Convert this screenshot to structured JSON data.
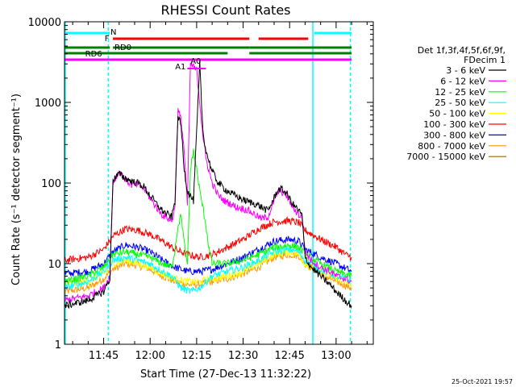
{
  "chart_data": {
    "type": "line",
    "title": "RHESSI Count Rates",
    "xlabel": "Start Time (27-Dec-13 11:32:22)",
    "ylabel": "Count Rate (s⁻¹ detector segment⁻¹)",
    "y_scale": "log",
    "ylim": [
      1,
      10000
    ],
    "xlim": [
      "11:32:22",
      "13:12:00"
    ],
    "y_ticks": [
      "1",
      "10",
      "100",
      "1000",
      "10000"
    ],
    "x_ticks": [
      "11:45",
      "12:00",
      "12:15",
      "12:30",
      "12:45",
      "13:00"
    ],
    "x_tick_minutes": [
      705,
      720,
      735,
      750,
      765,
      780
    ],
    "grid": false,
    "legend_position": "right",
    "legend_header": [
      "Det 1f,3f,4f,5f,6f,9f,",
      "FDecim 1"
    ],
    "series": [
      {
        "name": "3 - 6 keV",
        "color": "#000000",
        "points": [
          [
            692.4,
            3.0
          ],
          [
            700,
            3.5
          ],
          [
            705,
            4.5
          ],
          [
            707,
            6.5
          ],
          [
            708,
            110
          ],
          [
            710,
            130
          ],
          [
            712,
            115
          ],
          [
            714,
            105
          ],
          [
            716,
            100
          ],
          [
            718,
            90
          ],
          [
            720,
            70
          ],
          [
            722,
            55
          ],
          [
            724,
            45
          ],
          [
            726,
            40
          ],
          [
            727,
            38
          ],
          [
            728,
            60
          ],
          [
            729,
            700
          ],
          [
            730,
            500
          ],
          [
            731,
            150
          ],
          [
            732,
            80
          ],
          [
            734,
            60
          ],
          [
            736,
            3000
          ],
          [
            737,
            450
          ],
          [
            738,
            250
          ],
          [
            740,
            140
          ],
          [
            742,
            100
          ],
          [
            744,
            85
          ],
          [
            746,
            75
          ],
          [
            748,
            68
          ],
          [
            750,
            62
          ],
          [
            752,
            58
          ],
          [
            754,
            55
          ],
          [
            756,
            50
          ],
          [
            758,
            45
          ],
          [
            760,
            65
          ],
          [
            761,
            80
          ],
          [
            762,
            85
          ],
          [
            764,
            75
          ],
          [
            766,
            55
          ],
          [
            768,
            45
          ],
          [
            769,
            40
          ],
          [
            770,
            12
          ],
          [
            772,
            9
          ],
          [
            775,
            7
          ],
          [
            778,
            5.5
          ],
          [
            780,
            4.5
          ],
          [
            783,
            3.5
          ],
          [
            785,
            3.0
          ]
        ]
      },
      {
        "name": "6 - 12 keV",
        "color": "#ff00ff",
        "points": [
          [
            692.4,
            3.5
          ],
          [
            700,
            4.0
          ],
          [
            705,
            5.0
          ],
          [
            707,
            7.0
          ],
          [
            708,
            100
          ],
          [
            710,
            140
          ],
          [
            712,
            110
          ],
          [
            714,
            95
          ],
          [
            716,
            95
          ],
          [
            718,
            85
          ],
          [
            720,
            65
          ],
          [
            722,
            50
          ],
          [
            724,
            40
          ],
          [
            726,
            36
          ],
          [
            727,
            33
          ],
          [
            728,
            50
          ],
          [
            729,
            800
          ],
          [
            730,
            600
          ],
          [
            731,
            250
          ],
          [
            732,
            50
          ],
          [
            733,
            3000
          ],
          [
            735,
            2500
          ],
          [
            737,
            400
          ],
          [
            738,
            200
          ],
          [
            740,
            100
          ],
          [
            742,
            70
          ],
          [
            744,
            60
          ],
          [
            746,
            55
          ],
          [
            748,
            50
          ],
          [
            750,
            48
          ],
          [
            752,
            45
          ],
          [
            754,
            40
          ],
          [
            756,
            36
          ],
          [
            758,
            38
          ],
          [
            760,
            60
          ],
          [
            761,
            75
          ],
          [
            762,
            80
          ],
          [
            764,
            70
          ],
          [
            766,
            50
          ],
          [
            768,
            40
          ],
          [
            769,
            38
          ],
          [
            770,
            14
          ],
          [
            772,
            11
          ],
          [
            775,
            9
          ],
          [
            778,
            8
          ],
          [
            780,
            7
          ],
          [
            783,
            6.5
          ],
          [
            785,
            6.0
          ]
        ]
      },
      {
        "name": "12 - 25 keV",
        "color": "#00ff00",
        "points": [
          [
            692.4,
            6.0
          ],
          [
            700,
            7.0
          ],
          [
            705,
            9.0
          ],
          [
            708,
            13
          ],
          [
            712,
            14
          ],
          [
            716,
            13
          ],
          [
            720,
            12
          ],
          [
            724,
            10
          ],
          [
            727,
            9
          ],
          [
            728,
            15
          ],
          [
            729,
            30
          ],
          [
            730,
            40
          ],
          [
            731,
            18
          ],
          [
            732,
            9
          ],
          [
            733,
            150
          ],
          [
            734,
            250
          ],
          [
            735,
            150
          ],
          [
            736,
            80
          ],
          [
            737,
            50
          ],
          [
            738,
            30
          ],
          [
            739,
            15
          ],
          [
            740,
            10
          ],
          [
            745,
            10
          ],
          [
            750,
            11
          ],
          [
            755,
            13
          ],
          [
            760,
            16
          ],
          [
            765,
            17
          ],
          [
            768,
            16
          ],
          [
            770,
            13
          ],
          [
            775,
            10
          ],
          [
            780,
            8
          ],
          [
            785,
            7
          ]
        ]
      },
      {
        "name": "25 - 50 keV",
        "color": "#00ffff",
        "points": [
          [
            692.4,
            5.0
          ],
          [
            700,
            6.0
          ],
          [
            705,
            8.0
          ],
          [
            708,
            11
          ],
          [
            712,
            12
          ],
          [
            716,
            11
          ],
          [
            720,
            10
          ],
          [
            724,
            8
          ],
          [
            727,
            7
          ],
          [
            730,
            5
          ],
          [
            733,
            4.5
          ],
          [
            736,
            5
          ],
          [
            740,
            7
          ],
          [
            745,
            8
          ],
          [
            750,
            9
          ],
          [
            755,
            11
          ],
          [
            760,
            14
          ],
          [
            765,
            15
          ],
          [
            768,
            14
          ],
          [
            770,
            11
          ],
          [
            775,
            8.5
          ],
          [
            780,
            7
          ],
          [
            785,
            6
          ]
        ]
      },
      {
        "name": "50 - 100 keV",
        "color": "#ffff00",
        "points": [
          [
            692.4,
            5.5
          ],
          [
            700,
            6.0
          ],
          [
            705,
            7.5
          ],
          [
            708,
            10
          ],
          [
            712,
            11
          ],
          [
            716,
            10
          ],
          [
            720,
            9
          ],
          [
            724,
            7.5
          ],
          [
            728,
            6.5
          ],
          [
            732,
            6
          ],
          [
            736,
            6
          ],
          [
            740,
            6.5
          ],
          [
            745,
            7
          ],
          [
            750,
            8
          ],
          [
            755,
            10
          ],
          [
            760,
            13
          ],
          [
            765,
            14
          ],
          [
            768,
            13
          ],
          [
            770,
            10
          ],
          [
            775,
            8
          ],
          [
            780,
            6.5
          ],
          [
            785,
            5.5
          ]
        ]
      },
      {
        "name": "100 - 300 keV",
        "color": "#ff0000",
        "points": [
          [
            692.4,
            11
          ],
          [
            700,
            12
          ],
          [
            705,
            15
          ],
          [
            708,
            22
          ],
          [
            712,
            27
          ],
          [
            716,
            26
          ],
          [
            720,
            23
          ],
          [
            724,
            19
          ],
          [
            728,
            15
          ],
          [
            732,
            13
          ],
          [
            736,
            12
          ],
          [
            740,
            13
          ],
          [
            745,
            16
          ],
          [
            750,
            20
          ],
          [
            755,
            27
          ],
          [
            760,
            33
          ],
          [
            765,
            34
          ],
          [
            768,
            32
          ],
          [
            770,
            26
          ],
          [
            775,
            20
          ],
          [
            780,
            16
          ],
          [
            783,
            13
          ],
          [
            785,
            12
          ]
        ]
      },
      {
        "name": "300 - 800 keV",
        "color": "#0000ff",
        "points": [
          [
            692.4,
            7.5
          ],
          [
            700,
            8.0
          ],
          [
            705,
            10
          ],
          [
            708,
            14
          ],
          [
            712,
            17
          ],
          [
            716,
            16
          ],
          [
            720,
            14
          ],
          [
            724,
            11
          ],
          [
            728,
            9
          ],
          [
            732,
            8
          ],
          [
            736,
            8
          ],
          [
            740,
            8.5
          ],
          [
            745,
            10
          ],
          [
            750,
            12
          ],
          [
            755,
            15
          ],
          [
            760,
            19
          ],
          [
            765,
            20
          ],
          [
            768,
            19
          ],
          [
            770,
            15
          ],
          [
            775,
            12
          ],
          [
            780,
            10
          ],
          [
            785,
            8
          ]
        ]
      },
      {
        "name": "800 - 7000 keV",
        "color": "#ff9900",
        "points": [
          [
            692.4,
            4.5
          ],
          [
            700,
            5.0
          ],
          [
            705,
            6.5
          ],
          [
            708,
            8.5
          ],
          [
            712,
            10
          ],
          [
            716,
            9.5
          ],
          [
            720,
            8.5
          ],
          [
            724,
            7
          ],
          [
            728,
            6
          ],
          [
            732,
            5.5
          ],
          [
            736,
            5.5
          ],
          [
            740,
            6
          ],
          [
            745,
            6.5
          ],
          [
            750,
            7.5
          ],
          [
            755,
            9
          ],
          [
            760,
            12
          ],
          [
            765,
            13
          ],
          [
            768,
            12.5
          ],
          [
            770,
            10
          ],
          [
            775,
            7.5
          ],
          [
            780,
            6
          ],
          [
            785,
            5
          ]
        ]
      },
      {
        "name": "7000 - 15000 keV",
        "color": "#996600",
        "points": []
      }
    ],
    "attenuator_bars": [
      {
        "label": "N",
        "color": "#00ffff",
        "segments": [
          [
            692.4,
            707
          ],
          [
            773,
            785
          ]
        ]
      },
      {
        "label": "F",
        "color": "#ff0000",
        "segments": [
          [
            708,
            752
          ],
          [
            755,
            771
          ]
        ]
      },
      {
        "label": "RD0",
        "color": "#008000",
        "segments": [
          [
            692.4,
            707
          ],
          [
            708,
            752
          ],
          [
            752,
            785
          ]
        ]
      },
      {
        "label": "RD6",
        "color": "#008000",
        "segments": [
          [
            692.4,
            745
          ],
          [
            752,
            785
          ]
        ]
      },
      {
        "label": "A1",
        "color": "#ff00ff",
        "segments": [
          [
            692.4,
            785
          ]
        ]
      },
      {
        "label": "A0",
        "color": "#ff00ff",
        "segments": [
          [
            732,
            738
          ]
        ]
      }
    ],
    "vertical_lines": [
      {
        "minute": 692.6,
        "style": "solid",
        "color": "#00ffff"
      },
      {
        "minute": 706.5,
        "style": "dashed",
        "color": "#00ffff"
      },
      {
        "minute": 772.5,
        "style": "solid",
        "color": "#00ffff"
      },
      {
        "minute": 784.6,
        "style": "dashed",
        "color": "#00ffff"
      }
    ]
  },
  "footer": {
    "timestamp": "25-Oct-2021 19:57"
  }
}
